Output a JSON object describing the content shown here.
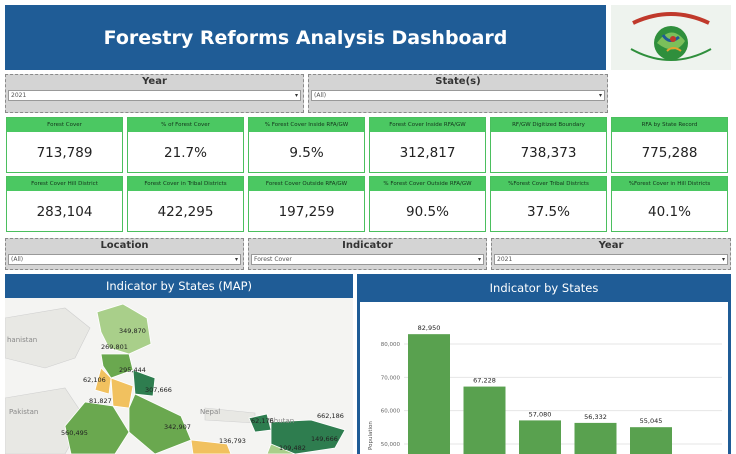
{
  "header": {
    "title": "Forestry Reforms Analysis Dashboard"
  },
  "logo": {
    "text": "प्रकृति रक्षति रक्षिता  Nature Protects if She is Protected",
    "brand_colors": [
      "#c0392b",
      "#2f8f3c",
      "#1f5c96"
    ]
  },
  "filters_top": {
    "year": {
      "label": "Year",
      "value": "2021"
    },
    "states": {
      "label": "State(s)",
      "value": "(All)"
    }
  },
  "kpis": [
    {
      "label": "Forest Cover",
      "value": "713,789"
    },
    {
      "label": "% of Forest Cover",
      "value": "21.7%"
    },
    {
      "label": "% Forest Cover Inside RFA/GW",
      "value": "9.5%"
    },
    {
      "label": "Forest Cover Inside RFA/GW",
      "value": "312,817"
    },
    {
      "label": "RF/GW Digitized Boundary",
      "value": "738,373"
    },
    {
      "label": "RFA by State Record",
      "value": "775,288"
    },
    {
      "label": "Forest Cover Hill District",
      "value": "283,104"
    },
    {
      "label": "Forest Cover in Tribal Districts",
      "value": "422,295"
    },
    {
      "label": "Forest Cover Outside RFA/GW",
      "value": "197,259"
    },
    {
      "label": "% Forest Cover Outside RFA/GW",
      "value": "90.5%"
    },
    {
      "label": "%Forest Cover Tribal Districts",
      "value": "37.5%"
    },
    {
      "label": "%Forest Cover in Hill Districts",
      "value": "40.1%"
    }
  ],
  "filters_mid": {
    "location": {
      "label": "Location",
      "value": "(All)"
    },
    "indicator": {
      "label": "Indicator",
      "value": "Forest Cover"
    },
    "year": {
      "label": "Year",
      "value": "2021"
    }
  },
  "map": {
    "title": "Indicator by States (MAP)",
    "country_labels": [
      "hanistan",
      "Pakistan",
      "Nepal",
      "Bhutan"
    ],
    "state_values": [
      "349,870",
      "269,801",
      "295,444",
      "62,106",
      "307,666",
      "81,827",
      "560,495",
      "342,907",
      "136,793",
      "62,176",
      "662,186",
      "149,666",
      "109,482"
    ],
    "colors": {
      "dark": "#2e7d4f",
      "mid": "#6aa84f",
      "light": "#a9cf8a",
      "yellow": "#f1c15f",
      "land": "#e8e8e4",
      "water": "#f4f4f2"
    }
  },
  "chart_data": {
    "type": "bar",
    "title": "Indicator by States",
    "xlabel": "",
    "ylabel": "Population",
    "ylim": [
      48000,
      86000
    ],
    "yticks": [
      50000,
      60000,
      70000,
      80000
    ],
    "ytick_labels": [
      "50,000",
      "60,000",
      "70,000",
      "80,000"
    ],
    "values": [
      82950,
      67228,
      57080,
      56332,
      55045
    ],
    "value_labels": [
      "82,950",
      "67,228",
      "57,080",
      "56,332",
      "55,045"
    ],
    "color": "#59a14f"
  }
}
